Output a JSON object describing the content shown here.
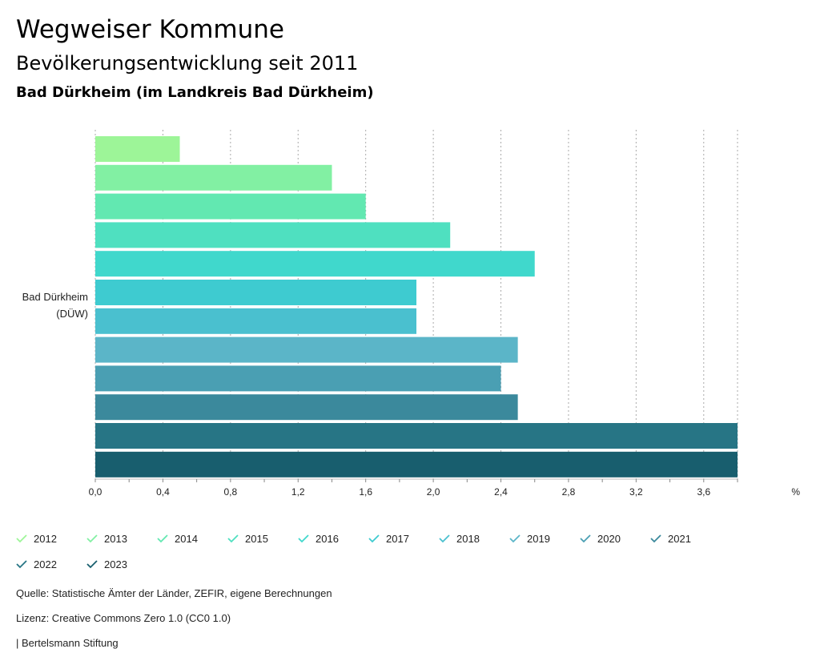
{
  "header": {
    "title": "Wegweiser Kommune",
    "subtitle": "Bevölkerungsentwicklung seit 2011",
    "region": "Bad Dürkheim (im Landkreis Bad Dürkheim)"
  },
  "chart_data": {
    "type": "bar",
    "orientation": "horizontal",
    "categories": [
      "Bad Dürkheim",
      "(DÜW)"
    ],
    "xlim": [
      0,
      3.8
    ],
    "xticks": [
      "0,0",
      "0,4",
      "0,8",
      "1,2",
      "1,6",
      "2,0",
      "2,4",
      "2,8",
      "3,2",
      "3,6"
    ],
    "xtick_values": [
      0,
      0.4,
      0.8,
      1.2,
      1.6,
      2.0,
      2.4,
      2.8,
      3.2,
      3.6
    ],
    "unit": "%",
    "grid": "vertical-dotted",
    "series": [
      {
        "name": "2012",
        "value": 0.5,
        "color": "#9df598"
      },
      {
        "name": "2013",
        "value": 1.4,
        "color": "#82f0a3"
      },
      {
        "name": "2014",
        "value": 1.6,
        "color": "#62e8b1"
      },
      {
        "name": "2015",
        "value": 2.1,
        "color": "#4fe0c0"
      },
      {
        "name": "2016",
        "value": 2.6,
        "color": "#40d8cc"
      },
      {
        "name": "2017",
        "value": 1.9,
        "color": "#3ecbd0"
      },
      {
        "name": "2018",
        "value": 1.9,
        "color": "#4ac0cf"
      },
      {
        "name": "2019",
        "value": 2.5,
        "color": "#5bb5c8"
      },
      {
        "name": "2020",
        "value": 2.4,
        "color": "#4a9fb3"
      },
      {
        "name": "2021",
        "value": 2.5,
        "color": "#3b899c"
      },
      {
        "name": "2022",
        "value": 3.8,
        "color": "#277585"
      },
      {
        "name": "2023",
        "value": 3.8,
        "color": "#185e6e"
      }
    ]
  },
  "footer": {
    "source": "Quelle: Statistische Ämter der Länder, ZEFIR, eigene Berechnungen",
    "license": "Lizenz: Creative Commons Zero 1.0 (CC0 1.0)",
    "publisher": "| Bertelsmann Stiftung"
  }
}
